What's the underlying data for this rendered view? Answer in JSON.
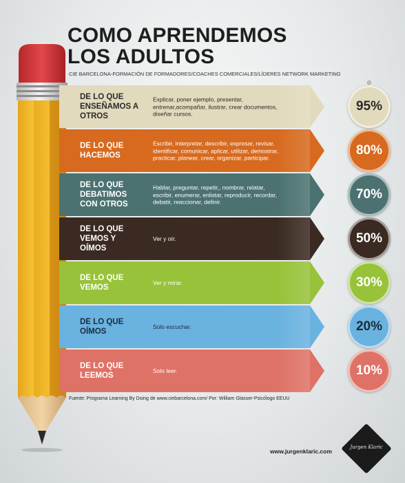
{
  "title": {
    "line1": "COMO APRENDEMOS",
    "line2": "LOS ADULTOS"
  },
  "subtitle": "CIE BARCELONA-FORMACIÓN DE FORMADORES/COACHES COMERCIALES/LÍDERES NETWORK MARKETING",
  "chart_data": {
    "type": "bar",
    "categories": [
      "DE LO QUE ENSEÑAMOS A OTROS",
      "DE LO QUE HACEMOS",
      "DE LO QUE DEBATIMOS CON OTROS",
      "DE LO QUE VEMOS Y OÍMOS",
      "DE LO QUE VEMOS",
      "DE LO QUE OÍMOS",
      "DE LO QUE LEEMOS"
    ],
    "values": [
      95,
      80,
      70,
      50,
      30,
      20,
      10
    ],
    "value_labels": [
      "95%",
      "80%",
      "70%",
      "50%",
      "30%",
      "20%",
      "10%"
    ],
    "descriptions": [
      "Explicar, poner ejemplo, presentar, entrenar,acompañar, ilustrar, crear documentos, diseñar cursos.",
      "Escribir, interpretar, describir, expresar, revisar, identificar, comunicar, aplicar, utilizar, demostrar, practicar, planear, crear, organizar, participar.",
      "Hablar, preguntar, repetir,, nombrar, relatar, escribir, enumerar, enlistar, reproducir, recordar, debatir, reaccionar, definir.",
      "Ver y oír.",
      "Ver y mirar.",
      "Solo escuchar.",
      "Solo leer."
    ],
    "colors": [
      "#e1dabd",
      "#d76a1e",
      "#4b7270",
      "#3a2a21",
      "#98c23a",
      "#6ab2e0",
      "#df7266"
    ],
    "text_colors": [
      "#2a2a2a",
      "#ffffff",
      "#ffffff",
      "#ffffff",
      "#ffffff",
      "#1a2a3a",
      "#ffffff"
    ],
    "circle_text_colors": [
      "#2a2a2a",
      "#ffffff",
      "#ffffff",
      "#ffffff",
      "#ffffff",
      "#1a2a3a",
      "#ffffff"
    ],
    "ylim": [
      0,
      100
    ]
  },
  "source": "Fuente: Programa Learning By Doing de www.ciebarcelona.com/ Por: William Glasser-Psicólogo EEUU",
  "website": "www.jurgenklaric.com",
  "logo_signature": "Jurgen Klaric"
}
